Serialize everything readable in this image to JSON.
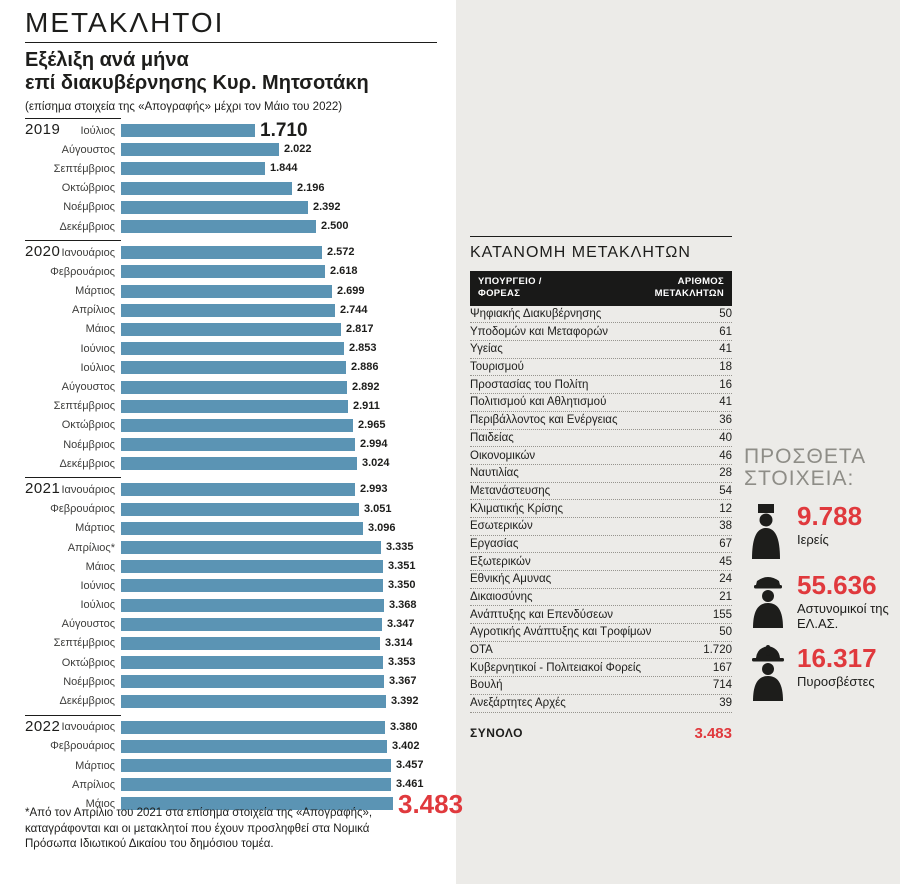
{
  "page": {
    "title": "ΜΕΤΑΚΛΗΤΟΙ",
    "subtitle_line1": "Εξέλιξη ανά μήνα",
    "subtitle_line2": "επί διακυβέρνησης Κυρ. Μητσοτάκη",
    "note": "(επίσημα στοιχεία της «Απογραφής» μέχρι τον Μάιο του 2022)",
    "footnote": "*Από τον Απρίλιο του 2021 στα επίσημα στοιχεία της «Απογραφής», καταγράφονται και οι μετακλητοί που έχουν προσληφθεί στα Νομικά Πρόσωπα Ιδιωτικού Δικαίου του δημόσιου τομέα."
  },
  "colors": {
    "bar": "#5b94b4",
    "accent_red": "#e0393d",
    "panel_bg": "#ecebe8",
    "table_header_bg": "#191918",
    "ink": "#1d1d1b"
  },
  "chart_data": {
    "type": "bar",
    "orientation": "horizontal",
    "title": "ΜΕΤΑΚΛΗΤΟΙ",
    "subtitle": "Εξέλιξη ανά μήνα επί διακυβέρνησης Κυρ. Μητσοτάκη",
    "max_value": 3483,
    "value_axis_hidden": true,
    "groups": [
      {
        "year": "2019",
        "rows": [
          {
            "month": "Ιούλιος",
            "value": 1710,
            "label": "1.710",
            "emphasis": "first"
          },
          {
            "month": "Αύγουστος",
            "value": 2022,
            "label": "2.022"
          },
          {
            "month": "Σεπτέμβριος",
            "value": 1844,
            "label": "1.844"
          },
          {
            "month": "Οκτώβριος",
            "value": 2196,
            "label": "2.196"
          },
          {
            "month": "Νοέμβριος",
            "value": 2392,
            "label": "2.392"
          },
          {
            "month": "Δεκέμβριος",
            "value": 2500,
            "label": "2.500"
          }
        ]
      },
      {
        "year": "2020",
        "rows": [
          {
            "month": "Ιανουάριος",
            "value": 2572,
            "label": "2.572"
          },
          {
            "month": "Φεβρουάριος",
            "value": 2618,
            "label": "2.618"
          },
          {
            "month": "Μάρτιος",
            "value": 2699,
            "label": "2.699"
          },
          {
            "month": "Απρίλιος",
            "value": 2744,
            "label": "2.744"
          },
          {
            "month": "Μάιος",
            "value": 2817,
            "label": "2.817"
          },
          {
            "month": "Ιούνιος",
            "value": 2853,
            "label": "2.853"
          },
          {
            "month": "Ιούλιος",
            "value": 2886,
            "label": "2.886"
          },
          {
            "month": "Αύγουστος",
            "value": 2892,
            "label": "2.892"
          },
          {
            "month": "Σεπτέμβριος",
            "value": 2911,
            "label": "2.911"
          },
          {
            "month": "Οκτώβριος",
            "value": 2965,
            "label": "2.965"
          },
          {
            "month": "Νοέμβριος",
            "value": 2994,
            "label": "2.994"
          },
          {
            "month": "Δεκέμβριος",
            "value": 3024,
            "label": "3.024"
          }
        ]
      },
      {
        "year": "2021",
        "rows": [
          {
            "month": "Ιανουάριος",
            "value": 2993,
            "label": "2.993"
          },
          {
            "month": "Φεβρουάριος",
            "value": 3051,
            "label": "3.051"
          },
          {
            "month": "Μάρτιος",
            "value": 3096,
            "label": "3.096"
          },
          {
            "month": "Απρίλιος*",
            "value": 3335,
            "label": "3.335"
          },
          {
            "month": "Μάιος",
            "value": 3351,
            "label": "3.351"
          },
          {
            "month": "Ιούνιος",
            "value": 3350,
            "label": "3.350"
          },
          {
            "month": "Ιούλιος",
            "value": 3368,
            "label": "3.368"
          },
          {
            "month": "Αύγουστος",
            "value": 3347,
            "label": "3.347"
          },
          {
            "month": "Σεπτέμβριος",
            "value": 3314,
            "label": "3.314"
          },
          {
            "month": "Οκτώβριος",
            "value": 3353,
            "label": "3.353"
          },
          {
            "month": "Νοέμβριος",
            "value": 3367,
            "label": "3.367"
          },
          {
            "month": "Δεκέμβριος",
            "value": 3392,
            "label": "3.392"
          }
        ]
      },
      {
        "year": "2022",
        "rows": [
          {
            "month": "Ιανουάριος",
            "value": 3380,
            "label": "3.380"
          },
          {
            "month": "Φεβρουάριος",
            "value": 3402,
            "label": "3.402"
          },
          {
            "month": "Μάρτιος",
            "value": 3457,
            "label": "3.457"
          },
          {
            "month": "Απρίλιος",
            "value": 3461,
            "label": "3.461"
          },
          {
            "month": "Μάιος",
            "value": 3483,
            "label": "3.483",
            "emphasis": "last"
          }
        ]
      }
    ]
  },
  "table": {
    "title": "ΚΑΤΑΝΟΜΗ ΜΕΤΑΚΛΗΤΩΝ",
    "col1": "ΥΠΟΥΡΓΕΙΟ / ΦΟΡΕΑΣ",
    "col2": "ΑΡΙΘΜΟΣ ΜΕΤΑΚΛΗΤΩΝ",
    "rows": [
      [
        "Ψηφιακής Διακυβέρνησης",
        "50"
      ],
      [
        "Υποδομών και Μεταφορών",
        "61"
      ],
      [
        "Υγείας",
        "41"
      ],
      [
        "Τουρισμού",
        "18"
      ],
      [
        "Προστασίας του Πολίτη",
        "16"
      ],
      [
        "Πολιτισμού και Αθλητισμού",
        "41"
      ],
      [
        "Περιβάλλοντος και Ενέργειας",
        "36"
      ],
      [
        "Παιδείας",
        "40"
      ],
      [
        "Οικονομικών",
        "46"
      ],
      [
        "Ναυτιλίας",
        "28"
      ],
      [
        "Μετανάστευσης",
        "54"
      ],
      [
        "Κλιματικής Κρίσης",
        "12"
      ],
      [
        "Εσωτερικών",
        "38"
      ],
      [
        "Εργασίας",
        "67"
      ],
      [
        "Εξωτερικών",
        "45"
      ],
      [
        "Εθνικής Αμυνας",
        "24"
      ],
      [
        "Δικαιοσύνης",
        "21"
      ],
      [
        "Ανάπτυξης και Επενδύσεων",
        "155"
      ],
      [
        "Αγροτικής Ανάπτυξης και Τροφίμων",
        "50"
      ],
      [
        "ΟΤΑ",
        "1.720"
      ],
      [
        "Κυβερνητικοί - Πολιτειακοί Φορείς",
        "167"
      ],
      [
        "Βουλή",
        "714"
      ],
      [
        "Ανεξάρτητες Αρχές",
        "39"
      ]
    ],
    "total_label": "ΣΥΝΟΛΟ",
    "total_value": "3.483"
  },
  "extra": {
    "title_line1": "ΠΡΟΣΘΕΤΑ",
    "title_line2": "ΣΤΟΙΧΕΙΑ:",
    "items": [
      {
        "icon": "priest-icon",
        "value": "9.788",
        "label": "Ιερείς"
      },
      {
        "icon": "police-icon",
        "value": "55.636",
        "label": "Αστυνομικοί της ΕΛ.ΑΣ."
      },
      {
        "icon": "firefighter-icon",
        "value": "16.317",
        "label": "Πυροσβέστες"
      }
    ]
  }
}
